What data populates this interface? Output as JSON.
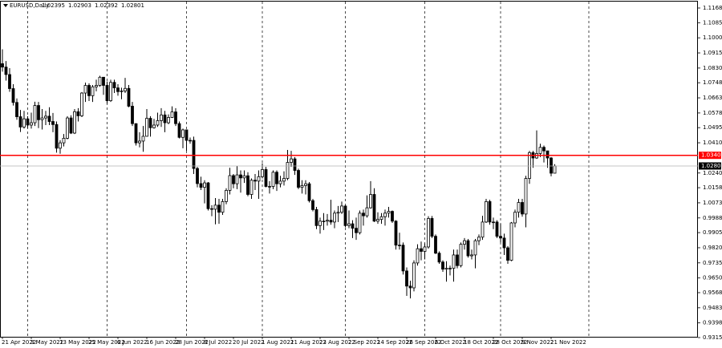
{
  "chart_data": {
    "type": "candlestick",
    "symbol": "EURUSD,Daily",
    "categories": [
      "21 Apr 2022",
      null,
      null,
      null,
      null,
      null,
      null,
      null,
      "3 May 2022",
      null,
      null,
      null,
      null,
      null,
      null,
      null,
      "13 May 2022",
      null,
      null,
      null,
      null,
      null,
      null,
      null,
      "25 May 2022",
      null,
      null,
      null,
      null,
      null,
      null,
      null,
      "6 Jun 2022",
      null,
      null,
      null,
      null,
      null,
      null,
      null,
      "16 Jun 2022",
      null,
      null,
      null,
      null,
      null,
      null,
      null,
      "28 Jun 2022",
      null,
      null,
      null,
      null,
      null,
      null,
      null,
      "8 Jul 2022",
      null,
      null,
      null,
      null,
      null,
      null,
      null,
      "20 Jul 2022",
      null,
      null,
      null,
      null,
      null,
      null,
      null,
      "1 Aug 2022",
      null,
      null,
      null,
      null,
      null,
      null,
      null,
      "11 Aug 2022",
      null,
      null,
      null,
      null,
      null,
      null,
      null,
      "23 Aug 2022",
      null,
      null,
      null,
      null,
      null,
      null,
      null,
      "2 Sep 2022",
      null,
      null,
      null,
      null,
      null,
      null,
      null,
      "14 Sep 2022",
      null,
      null,
      null,
      null,
      null,
      null,
      null,
      "26 Sep 2022",
      null,
      null,
      null,
      null,
      null,
      null,
      null,
      "6 Oct 2022",
      null,
      null,
      null,
      null,
      null,
      null,
      null,
      "18 Oct 2022",
      null,
      null,
      null,
      null,
      null,
      null,
      null,
      "28 Oct 2022",
      null,
      null,
      null,
      null,
      null,
      null,
      null,
      "9 Nov 2022",
      null,
      null,
      null,
      null,
      null,
      null,
      null,
      "21 Nov 2022",
      null
    ],
    "candles": [
      [
        1.0855,
        1.0936,
        1.081,
        1.0836
      ],
      [
        1.0836,
        1.087,
        1.076,
        1.0794
      ],
      [
        1.0794,
        1.083,
        1.0697,
        1.0715
      ],
      [
        1.0715,
        1.074,
        1.062,
        1.0637
      ],
      [
        1.0637,
        1.066,
        1.054,
        1.0557
      ],
      [
        1.0557,
        1.0595,
        1.0471,
        1.0499
      ],
      [
        1.0499,
        1.059,
        1.049,
        1.0545
      ],
      [
        1.0545,
        1.056,
        1.0493,
        1.051
      ],
      [
        1.051,
        1.058,
        1.049,
        1.0523
      ],
      [
        1.0523,
        1.0641,
        1.0505,
        1.062
      ],
      [
        1.062,
        1.064,
        1.0493,
        1.054
      ],
      [
        1.054,
        1.06,
        1.0485,
        1.055
      ],
      [
        1.055,
        1.059,
        1.051,
        1.056
      ],
      [
        1.056,
        1.061,
        1.051,
        1.053
      ],
      [
        1.053,
        1.0578,
        1.047,
        1.0513
      ],
      [
        1.0513,
        1.053,
        1.0355,
        1.038
      ],
      [
        1.038,
        1.0425,
        1.0349,
        1.041
      ],
      [
        1.041,
        1.046,
        1.039,
        1.0436
      ],
      [
        1.0436,
        1.056,
        1.043,
        1.055
      ],
      [
        1.055,
        1.0565,
        1.046,
        1.0465
      ],
      [
        1.0465,
        1.06,
        1.046,
        1.0585
      ],
      [
        1.0585,
        1.0605,
        1.053,
        1.0562
      ],
      [
        1.0562,
        1.0695,
        1.0555,
        1.069
      ],
      [
        1.069,
        1.0749,
        1.064,
        1.0733
      ],
      [
        1.0733,
        1.0745,
        1.0645,
        1.0675
      ],
      [
        1.0675,
        1.0735,
        1.064,
        1.0725
      ],
      [
        1.0725,
        1.0765,
        1.07,
        1.0733
      ],
      [
        1.0733,
        1.0787,
        1.0725,
        1.0779
      ],
      [
        1.0779,
        1.078,
        1.068,
        1.0733
      ],
      [
        1.0733,
        1.0755,
        1.063,
        1.0647
      ],
      [
        1.0647,
        1.0765,
        1.064,
        1.075
      ],
      [
        1.075,
        1.0765,
        1.069,
        1.0719
      ],
      [
        1.0719,
        1.074,
        1.0675,
        1.0698
      ],
      [
        1.0698,
        1.072,
        1.0655,
        1.0702
      ],
      [
        1.0702,
        1.0775,
        1.069,
        1.0716
      ],
      [
        1.0716,
        1.0735,
        1.061,
        1.0616
      ],
      [
        1.0616,
        1.064,
        1.0505,
        1.0518
      ],
      [
        1.0518,
        1.052,
        1.0395,
        1.041
      ],
      [
        1.041,
        1.047,
        1.0385,
        1.042
      ],
      [
        1.042,
        1.0505,
        1.036,
        1.0447
      ],
      [
        1.0447,
        1.06,
        1.0445,
        1.0548
      ],
      [
        1.0548,
        1.056,
        1.0445,
        1.0495
      ],
      [
        1.0495,
        1.0545,
        1.049,
        1.051
      ],
      [
        1.051,
        1.058,
        1.05,
        1.0535
      ],
      [
        1.0535,
        1.0605,
        1.05,
        1.0567
      ],
      [
        1.0567,
        1.059,
        1.047,
        1.0523
      ],
      [
        1.0523,
        1.057,
        1.0515,
        1.0553
      ],
      [
        1.0553,
        1.0615,
        1.055,
        1.0584
      ],
      [
        1.0584,
        1.0605,
        1.0505,
        1.0518
      ],
      [
        1.0518,
        1.053,
        1.0435,
        1.0441
      ],
      [
        1.0441,
        1.049,
        1.038,
        1.0483
      ],
      [
        1.0483,
        1.0485,
        1.0365,
        1.0424
      ],
      [
        1.0424,
        1.044,
        1.0405,
        1.0424
      ],
      [
        1.0424,
        1.0445,
        1.0235,
        1.0266
      ],
      [
        1.0266,
        1.0275,
        1.016,
        1.0181
      ],
      [
        1.0181,
        1.022,
        1.0145,
        1.016
      ],
      [
        1.016,
        1.02,
        1.007,
        1.0185
      ],
      [
        1.0185,
        1.019,
        1.003,
        1.004
      ],
      [
        1.004,
        1.006,
        0.9998,
        1.0037
      ],
      [
        1.0037,
        1.01,
        0.9952,
        1.006
      ],
      [
        1.006,
        1.0095,
        0.9955,
        1.002
      ],
      [
        1.002,
        1.0095,
        1.0005,
        1.008
      ],
      [
        1.008,
        1.0155,
        1.0065,
        1.0143
      ],
      [
        1.0143,
        1.027,
        1.012,
        1.0226
      ],
      [
        1.0226,
        1.0235,
        1.0155,
        1.018
      ],
      [
        1.018,
        1.028,
        1.015,
        1.023
      ],
      [
        1.023,
        1.0255,
        1.013,
        1.0213
      ],
      [
        1.0213,
        1.0255,
        1.0185,
        1.0225
      ],
      [
        1.0225,
        1.0245,
        1.011,
        1.012
      ],
      [
        1.012,
        1.021,
        1.0095,
        1.02
      ],
      [
        1.02,
        1.0235,
        1.0145,
        1.0195
      ],
      [
        1.0195,
        1.0255,
        1.0095,
        1.022
      ],
      [
        1.022,
        1.0295,
        1.021,
        1.026
      ],
      [
        1.026,
        1.0275,
        1.016,
        1.0165
      ],
      [
        1.0165,
        1.0195,
        1.0125,
        1.0165
      ],
      [
        1.0165,
        1.0255,
        1.015,
        1.0245
      ],
      [
        1.0245,
        1.0255,
        1.014,
        1.018
      ],
      [
        1.018,
        1.0225,
        1.016,
        1.0195
      ],
      [
        1.0195,
        1.025,
        1.017,
        1.021
      ],
      [
        1.021,
        1.037,
        1.02,
        1.03
      ],
      [
        1.03,
        1.0365,
        1.0275,
        1.032
      ],
      [
        1.032,
        1.033,
        1.023,
        1.0255
      ],
      [
        1.0255,
        1.0265,
        1.015,
        1.016
      ],
      [
        1.016,
        1.02,
        1.0125,
        1.017
      ],
      [
        1.017,
        1.02,
        1.012,
        1.018
      ],
      [
        1.018,
        1.019,
        1.0075,
        1.0085
      ],
      [
        1.0085,
        1.0095,
        1.0025,
        1.0035
      ],
      [
        1.0035,
        1.005,
        0.9925,
        0.9945
      ],
      [
        0.9945,
        0.999,
        0.99,
        0.997
      ],
      [
        0.997,
        1.0015,
        0.992,
        0.997
      ],
      [
        0.997,
        1.001,
        0.9945,
        0.9975
      ],
      [
        0.9975,
        1.009,
        0.995,
        0.9965
      ],
      [
        0.9965,
        1.003,
        0.993,
        1.0015
      ],
      [
        1.0015,
        1.0055,
        0.9965,
        1.002
      ],
      [
        1.002,
        1.008,
        1.001,
        1.0055
      ],
      [
        1.0055,
        1.006,
        0.9935,
        0.9945
      ],
      [
        0.9945,
        1.003,
        0.993,
        0.9955
      ],
      [
        0.9955,
        0.9975,
        0.9875,
        0.993
      ],
      [
        0.993,
        0.999,
        0.9865,
        0.9905
      ],
      [
        0.9905,
        1.003,
        0.9895,
        1.0015
      ],
      [
        1.0015,
        1.0035,
        0.9945,
        1.0
      ],
      [
        1.0,
        1.0115,
        0.999,
        1.0045
      ],
      [
        1.0045,
        1.0195,
        1.004,
        1.012
      ],
      [
        1.012,
        1.0155,
        0.9965,
        0.997
      ],
      [
        0.997,
        1.002,
        0.9955,
        0.998
      ],
      [
        0.998,
        1.0015,
        0.9955,
        0.9995
      ],
      [
        0.9995,
        1.0035,
        0.9945,
        1.0015
      ],
      [
        1.0015,
        1.005,
        0.999,
        1.0025
      ],
      [
        1.0025,
        1.003,
        0.996,
        0.997
      ],
      [
        0.997,
        0.9975,
        0.981,
        0.9835
      ],
      [
        0.9835,
        0.9905,
        0.981,
        0.9835
      ],
      [
        0.9835,
        0.985,
        0.967,
        0.969
      ],
      [
        0.969,
        0.971,
        0.955,
        0.9605
      ],
      [
        0.9605,
        0.9635,
        0.9536,
        0.9595
      ],
      [
        0.9595,
        0.975,
        0.9575,
        0.9735
      ],
      [
        0.9735,
        0.984,
        0.972,
        0.9815
      ],
      [
        0.9815,
        0.9855,
        0.975,
        0.98
      ],
      [
        0.98,
        0.9845,
        0.9755,
        0.9825
      ],
      [
        0.9825,
        0.9998,
        0.9815,
        0.9985
      ],
      [
        0.9985,
        0.9999,
        0.9875,
        0.9885
      ],
      [
        0.9885,
        0.9895,
        0.9785,
        0.979
      ],
      [
        0.979,
        0.98,
        0.973,
        0.974
      ],
      [
        0.974,
        0.975,
        0.9685,
        0.97
      ],
      [
        0.97,
        0.9745,
        0.963,
        0.9705
      ],
      [
        0.9705,
        0.972,
        0.9665,
        0.9705
      ],
      [
        0.9705,
        0.981,
        0.963,
        0.978
      ],
      [
        0.978,
        0.981,
        0.9705,
        0.972
      ],
      [
        0.972,
        0.985,
        0.971,
        0.984
      ],
      [
        0.984,
        0.9875,
        0.981,
        0.986
      ],
      [
        0.986,
        0.987,
        0.9765,
        0.9775
      ],
      [
        0.9775,
        0.981,
        0.9755,
        0.978
      ],
      [
        0.978,
        0.987,
        0.9705,
        0.986
      ],
      [
        0.986,
        0.9895,
        0.9835,
        0.988
      ],
      [
        0.988,
        1.0,
        0.9865,
        0.9965
      ],
      [
        0.9965,
        1.0095,
        0.996,
        1.008
      ],
      [
        1.008,
        1.009,
        0.995,
        0.9965
      ],
      [
        0.9965,
        0.999,
        0.9925,
        0.9965
      ],
      [
        0.9965,
        0.9975,
        0.9875,
        0.9885
      ],
      [
        0.9885,
        0.9955,
        0.985,
        0.9875
      ],
      [
        0.9875,
        0.99,
        0.978,
        0.982
      ],
      [
        0.982,
        0.983,
        0.973,
        0.975
      ],
      [
        0.975,
        0.9965,
        0.9745,
        0.996
      ],
      [
        0.996,
        1.0035,
        0.9935,
        1.002
      ],
      [
        1.002,
        1.0095,
        0.999,
        1.0075
      ],
      [
        1.0075,
        1.0095,
        0.9995,
        1.001
      ],
      [
        1.001,
        1.0225,
        0.9935,
        1.021
      ],
      [
        1.021,
        1.0365,
        1.018,
        1.0355
      ],
      [
        1.0355,
        1.0365,
        1.027,
        1.0325
      ],
      [
        1.0325,
        1.048,
        1.032,
        1.035
      ],
      [
        1.035,
        1.0405,
        1.033,
        1.0385
      ],
      [
        1.0385,
        1.0395,
        1.03,
        1.0365
      ],
      [
        1.0365,
        1.0365,
        1.027,
        1.0325
      ],
      [
        1.0325,
        1.033,
        1.0222,
        1.02395
      ],
      [
        1.02395,
        1.02903,
        1.02392,
        1.02801
      ]
    ],
    "ylim": [
      0.932,
      1.1204
    ],
    "yticks": [
      {
        "value": 1.1168,
        "label": "1.11680"
      },
      1.10855,
      1.10005,
      1.09155,
      1.08305,
      {
        "value": 1.0748,
        "label": "1.07480"
      },
      {
        "value": 1.0663,
        "label": "1.06630"
      },
      {
        "value": 1.0578,
        "label": "1.05780"
      },
      1.04955,
      1.04105,
      1.02405,
      {
        "value": 1.0158,
        "label": "1.01580"
      },
      {
        "value": 1.0073,
        "label": "1.00730"
      },
      {
        "value": 0.9988,
        "label": "0.99880"
      },
      0.99055,
      0.98205,
      0.97355,
      0.96505,
      {
        "value": 0.9568,
        "label": "0.95680"
      },
      {
        "value": 0.9483,
        "label": "0.94830"
      },
      {
        "value": 0.9398,
        "label": "0.93980"
      },
      0.93155
    ],
    "level": {
      "value": 1.034,
      "label": "1.03400",
      "color": "#ff0000"
    },
    "bull_color": "#ffffff",
    "bear_color": "#000000"
  }
}
